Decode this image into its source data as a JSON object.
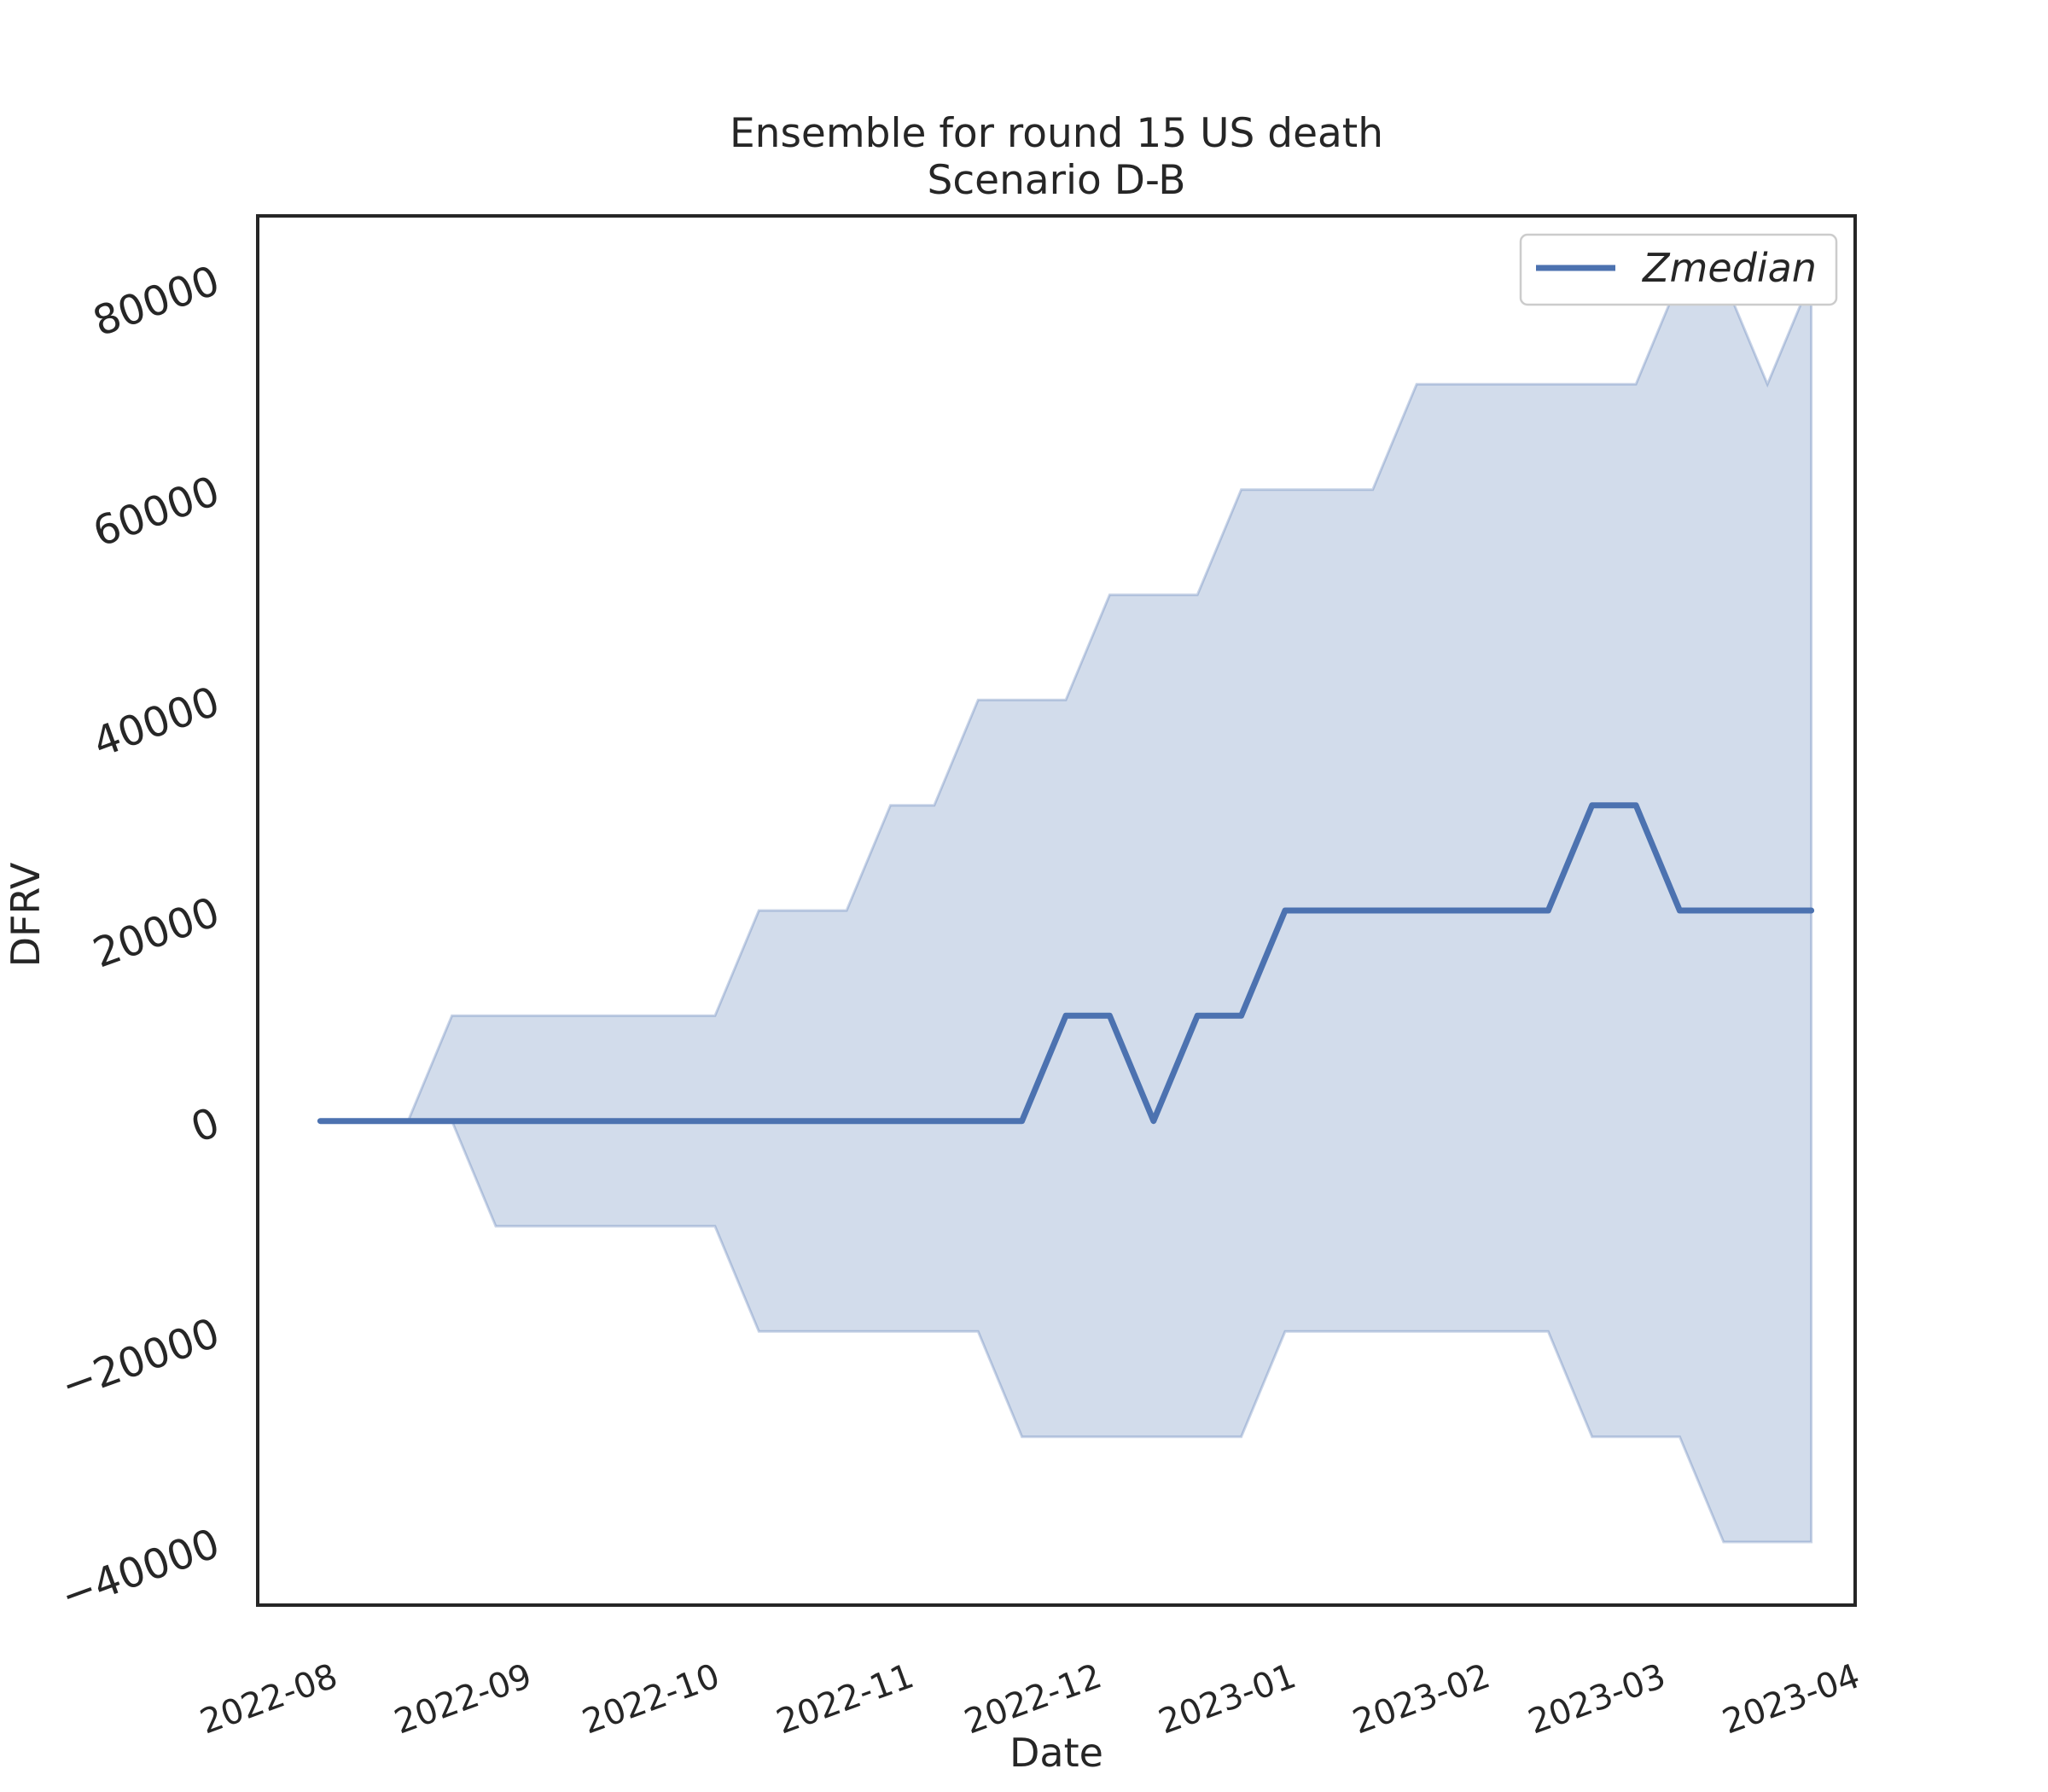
{
  "chart_data": {
    "type": "line",
    "title": "Ensemble for round 15 US death",
    "subtitle": "Scenario D-B",
    "xlabel": "Date",
    "ylabel": "DFRV",
    "ylim": [
      -46000,
      86000
    ],
    "xlim": [
      "2022-07-20",
      "2023-04-01"
    ],
    "y_ticks": [
      -40000,
      -20000,
      0,
      20000,
      40000,
      60000,
      80000
    ],
    "y_tick_labels": [
      "−40000",
      "−20000",
      "0",
      "20000",
      "40000",
      "60000",
      "80000"
    ],
    "x_ticks": [
      "2022-08-01",
      "2022-09-01",
      "2022-10-01",
      "2022-11-01",
      "2022-12-01",
      "2023-01-01",
      "2023-02-01",
      "2023-03-01",
      "2023-04-01"
    ],
    "x_tick_labels": [
      "2022-08",
      "2022-09",
      "2022-10",
      "2022-11",
      "2022-12",
      "2023-01",
      "2023-02",
      "2023-03",
      "2023-04"
    ],
    "grid": false,
    "legend_position": "top-right",
    "colors": {
      "line": "#4c72b0",
      "band": "#4c72b0",
      "frame": "#262626"
    },
    "x": [
      "2022-07-30",
      "2022-08-06",
      "2022-08-13",
      "2022-08-20",
      "2022-08-27",
      "2022-09-03",
      "2022-09-10",
      "2022-09-17",
      "2022-09-24",
      "2022-10-01",
      "2022-10-08",
      "2022-10-15",
      "2022-10-22",
      "2022-10-29",
      "2022-11-05",
      "2022-11-12",
      "2022-11-19",
      "2022-11-26",
      "2022-12-03",
      "2022-12-10",
      "2022-12-17",
      "2022-12-24",
      "2022-12-31",
      "2023-01-07",
      "2023-01-14",
      "2023-01-21",
      "2023-01-28",
      "2023-02-04",
      "2023-02-11",
      "2023-02-18",
      "2023-02-25",
      "2023-03-04",
      "2023-03-11",
      "2023-03-18",
      "2023-03-25"
    ],
    "series": [
      {
        "name": "Zmedian",
        "values": [
          0,
          0,
          0,
          0,
          0,
          0,
          0,
          0,
          0,
          0,
          0,
          0,
          0,
          0,
          0,
          0,
          0,
          10000,
          10000,
          0,
          10000,
          10000,
          20000,
          20000,
          20000,
          20000,
          20000,
          20000,
          20000,
          30000,
          30000,
          20000,
          20000,
          20000,
          20000
        ]
      }
    ],
    "band": {
      "lower": [
        0,
        0,
        0,
        0,
        -10000,
        -10000,
        -10000,
        -10000,
        -10000,
        -10000,
        -20000,
        -20000,
        -20000,
        -20000,
        -20000,
        -20000,
        -30000,
        -30000,
        -30000,
        -30000,
        -30000,
        -30000,
        -20000,
        -20000,
        -20000,
        -20000,
        -20000,
        -20000,
        -20000,
        -30000,
        -30000,
        -30000,
        -40000,
        -40000,
        -40000
      ],
      "upper": [
        0,
        0,
        0,
        10000,
        10000,
        10000,
        10000,
        10000,
        10000,
        10000,
        20000,
        20000,
        20000,
        30000,
        30000,
        40000,
        40000,
        40000,
        50000,
        50000,
        50000,
        60000,
        60000,
        60000,
        60000,
        70000,
        70000,
        70000,
        70000,
        70000,
        70000,
        80000,
        80000,
        70000,
        80000
      ]
    }
  }
}
